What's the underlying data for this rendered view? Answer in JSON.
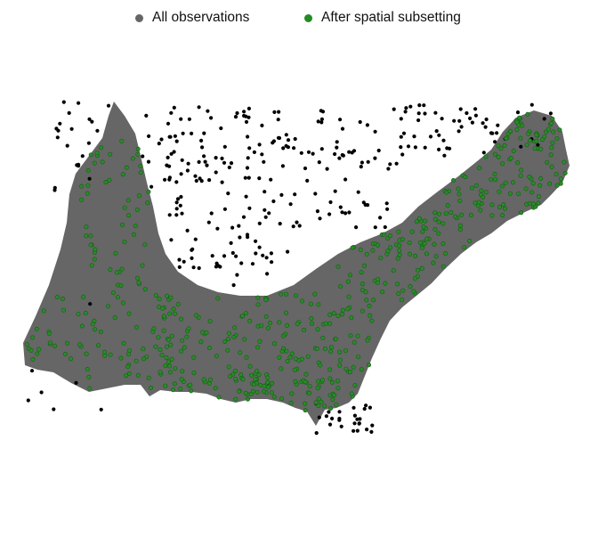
{
  "legend": [
    {
      "label": "All observations",
      "color": "#666666"
    },
    {
      "label": "After spatial subsetting",
      "color": "#228b22"
    }
  ],
  "colors": {
    "region_fill": "#666666",
    "all_points": "#000000",
    "subset_points_fill": "#2a8a2a",
    "subset_points_edge": "#135e13",
    "background": "#ffffff"
  }
}
